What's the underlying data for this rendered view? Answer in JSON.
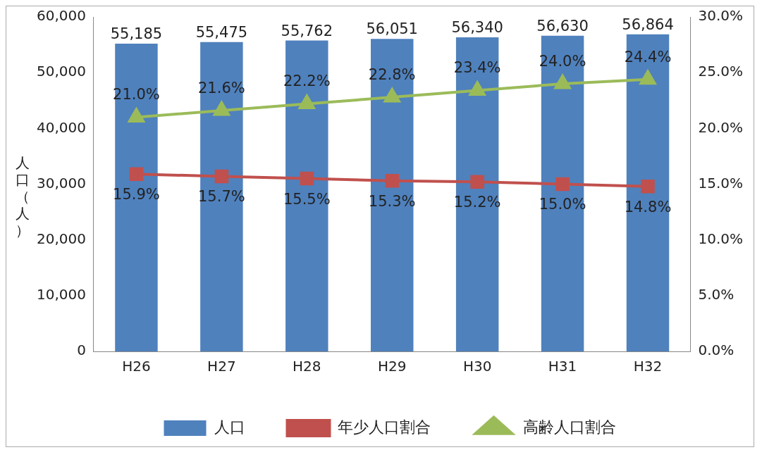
{
  "chart_data": {
    "type": "bar",
    "ylabel": "人口（人）",
    "categories": [
      "H26",
      "H27",
      "H28",
      "H29",
      "H30",
      "H31",
      "H32"
    ],
    "series": [
      {
        "name": "人口",
        "color": "#4f81bd",
        "values": [
          55185,
          55475,
          55762,
          56051,
          56340,
          56630,
          56864
        ],
        "value_labels": [
          "55,185",
          "55,475",
          "55,762",
          "56,051",
          "56,340",
          "56,630",
          "56,864"
        ]
      },
      {
        "name": "年少人口割合",
        "type": "line",
        "axis": "y2",
        "color": "#c0504d",
        "marker": "square",
        "values": [
          15.9,
          15.7,
          15.5,
          15.3,
          15.2,
          15.0,
          14.8
        ],
        "value_labels": [
          "15.9%",
          "15.7%",
          "15.5%",
          "15.3%",
          "15.2%",
          "15.0%",
          "14.8%"
        ]
      },
      {
        "name": "高齢人口割合",
        "type": "line",
        "axis": "y2",
        "color": "#9bbb59",
        "marker": "triangle",
        "values": [
          21.0,
          21.6,
          22.2,
          22.8,
          23.4,
          24.0,
          24.4
        ],
        "value_labels": [
          "21.0%",
          "21.6%",
          "22.2%",
          "22.8%",
          "23.4%",
          "24.0%",
          "24.4%"
        ]
      }
    ],
    "ylim": [
      0,
      60000
    ],
    "yticks": [
      {
        "value": 0,
        "label": "0"
      },
      {
        "value": 10000,
        "label": "10,000"
      },
      {
        "value": 20000,
        "label": "20,000"
      },
      {
        "value": 30000,
        "label": "30,000"
      },
      {
        "value": 40000,
        "label": "40,000"
      },
      {
        "value": 50000,
        "label": "50,000"
      },
      {
        "value": 60000,
        "label": "60,000"
      }
    ],
    "y2lim": [
      0,
      30
    ],
    "y2ticks": [
      {
        "value": 0,
        "label": "0.0%"
      },
      {
        "value": 5,
        "label": "5.0%"
      },
      {
        "value": 10,
        "label": "10.0%"
      },
      {
        "value": 15,
        "label": "15.0%"
      },
      {
        "value": 20,
        "label": "20.0%"
      },
      {
        "value": 25,
        "label": "25.0%"
      },
      {
        "value": 30,
        "label": "30.0%"
      }
    ],
    "grid": false,
    "legend": "bottom"
  }
}
